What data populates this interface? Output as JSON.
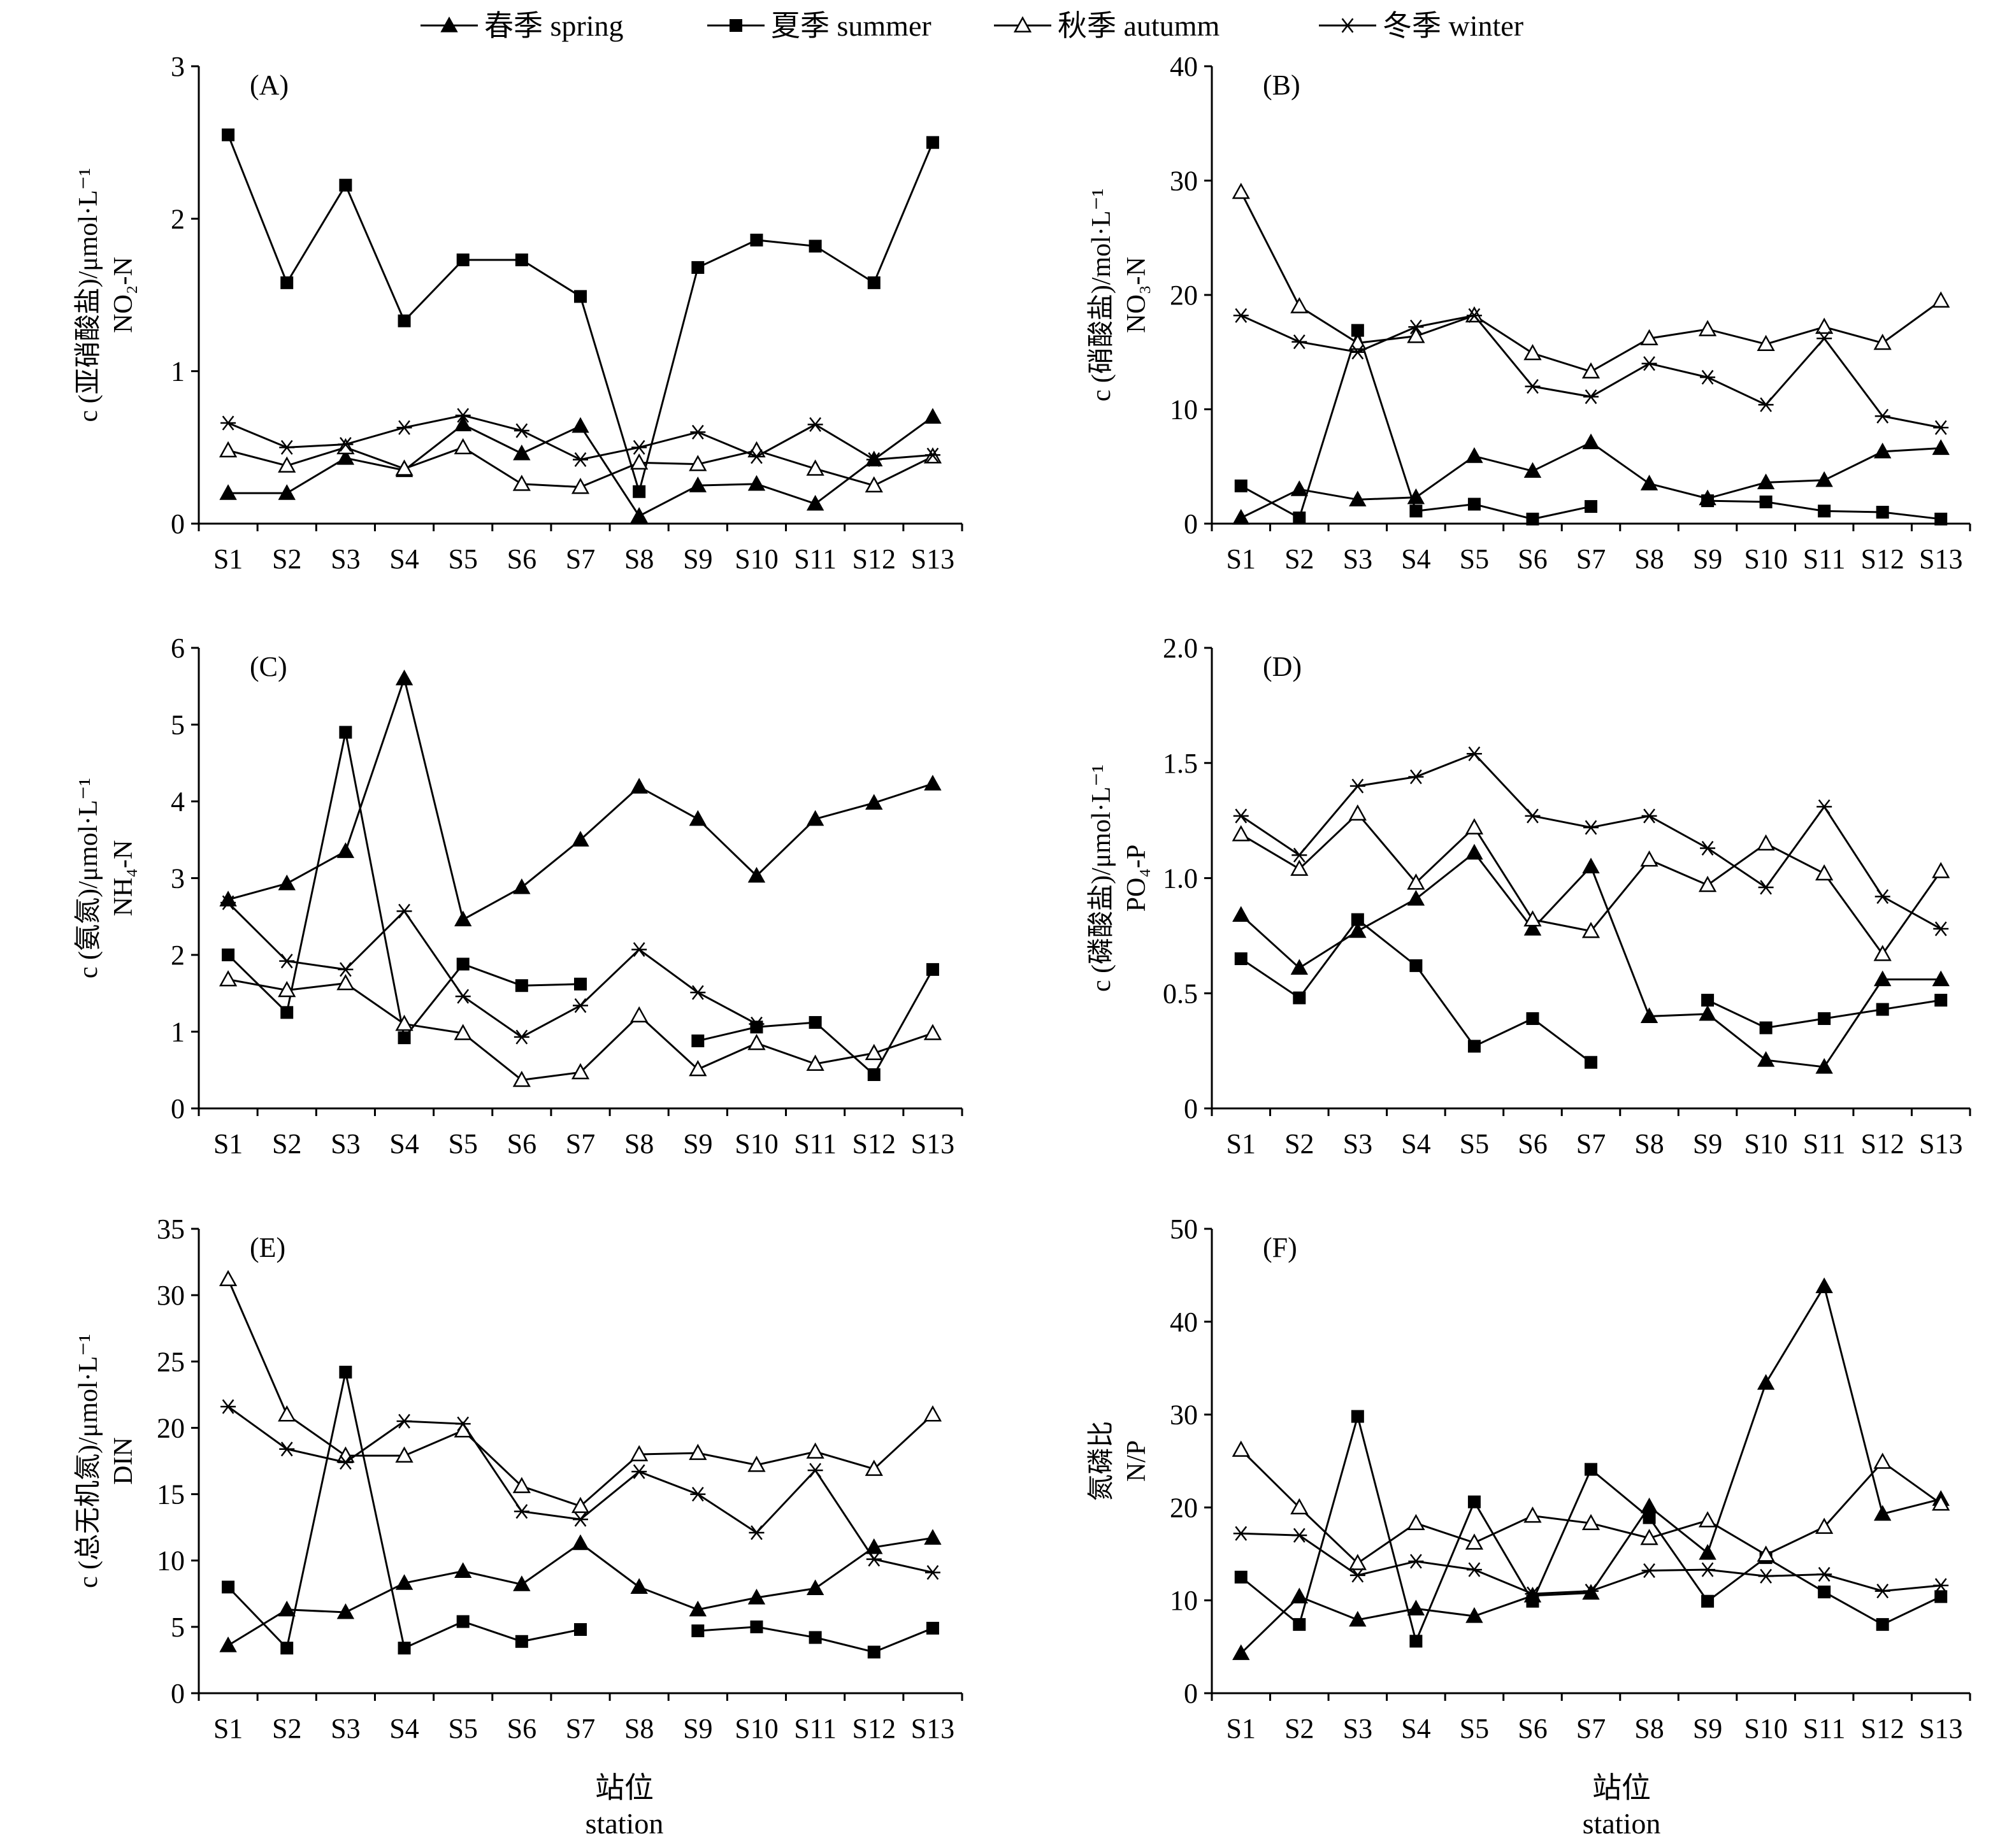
{
  "legend": [
    {
      "label": "春季 spring",
      "marker": "triangle-filled"
    },
    {
      "label": "夏季 summer",
      "marker": "square-filled"
    },
    {
      "label": "秋季 autumm",
      "marker": "triangle-open"
    },
    {
      "label": "冬季 winter",
      "marker": "asterisk"
    }
  ],
  "x_title_cn": "站位",
  "x_title_en": "station",
  "chart_data": [
    {
      "type": "line",
      "panel": "(A)",
      "ylabel_cn": "c (亚硝酸盐)/μmol·L⁻¹",
      "ylabel_en": "NO₂-N",
      "categories": [
        "S1",
        "S2",
        "S3",
        "S4",
        "S5",
        "S6",
        "S7",
        "S8",
        "S9",
        "S10",
        "S11",
        "S12",
        "S13"
      ],
      "ylim": [
        0,
        3
      ],
      "yticks": [
        "0",
        "1",
        "2",
        "3"
      ],
      "series": [
        {
          "name": "春季 spring",
          "values": [
            0.2,
            0.2,
            0.43,
            0.35,
            0.65,
            0.46,
            0.64,
            0.05,
            0.25,
            0.26,
            0.13,
            0.42,
            0.7
          ]
        },
        {
          "name": "夏季 summer",
          "values": [
            2.55,
            1.58,
            2.22,
            1.33,
            1.73,
            1.73,
            1.49,
            0.21,
            1.68,
            1.86,
            1.82,
            1.58,
            2.5
          ]
        },
        {
          "name": "秋季 autumm",
          "values": [
            0.48,
            0.38,
            0.5,
            0.36,
            0.5,
            0.26,
            0.24,
            0.4,
            0.39,
            0.48,
            0.36,
            0.25,
            0.44
          ]
        },
        {
          "name": "冬季 winter",
          "values": [
            0.66,
            0.5,
            0.52,
            0.63,
            0.71,
            0.61,
            0.42,
            0.5,
            0.6,
            0.44,
            0.65,
            0.42,
            0.45
          ]
        }
      ]
    },
    {
      "type": "line",
      "panel": "(B)",
      "ylabel_cn": "c (硝酸盐)/mol·L⁻¹",
      "ylabel_en": "NO₃-N",
      "categories": [
        "S1",
        "S2",
        "S3",
        "S4",
        "S5",
        "S6",
        "S7",
        "S8",
        "S9",
        "S10",
        "S11",
        "S12",
        "S13"
      ],
      "ylim": [
        0,
        40
      ],
      "yticks": [
        "0",
        "10",
        "20",
        "30",
        "40"
      ],
      "series": [
        {
          "name": "春季 spring",
          "values": [
            0.5,
            3.0,
            2.1,
            2.3,
            5.9,
            4.6,
            7.1,
            3.5,
            2.2,
            3.6,
            3.8,
            6.3,
            6.6
          ]
        },
        {
          "name": "夏季 summer",
          "values": [
            3.3,
            0.5,
            16.9,
            1.1,
            1.7,
            0.4,
            1.5,
            null,
            2.0,
            1.9,
            1.1,
            1.0,
            0.4
          ]
        },
        {
          "name": "秋季 autumm",
          "values": [
            29.0,
            19.0,
            15.8,
            16.4,
            18.2,
            14.9,
            13.3,
            16.2,
            17.0,
            15.7,
            17.2,
            15.8,
            19.5
          ]
        },
        {
          "name": "冬季 winter",
          "values": [
            18.2,
            15.9,
            15.0,
            17.2,
            18.2,
            12.0,
            11.1,
            14.0,
            12.8,
            10.4,
            16.2,
            9.4,
            8.4
          ]
        }
      ]
    },
    {
      "type": "line",
      "panel": "(C)",
      "ylabel_cn": "c (氨氮)/μmol·L⁻¹",
      "ylabel_en": "NH₄-N",
      "categories": [
        "S1",
        "S2",
        "S3",
        "S4",
        "S5",
        "S6",
        "S7",
        "S8",
        "S9",
        "S10",
        "S11",
        "S12",
        "S13"
      ],
      "ylim": [
        0,
        6
      ],
      "yticks": [
        "0",
        "1",
        "2",
        "3",
        "4",
        "5",
        "6"
      ],
      "series": [
        {
          "name": "春季 spring",
          "values": [
            2.72,
            2.93,
            3.35,
            5.6,
            2.46,
            2.88,
            3.5,
            4.19,
            3.77,
            3.03,
            3.77,
            3.98,
            4.23
          ]
        },
        {
          "name": "夏季 summer",
          "values": [
            2.0,
            1.25,
            4.9,
            0.92,
            1.88,
            1.6,
            1.62,
            null,
            0.88,
            1.06,
            1.12,
            0.44,
            1.81
          ]
        },
        {
          "name": "秋季 autumm",
          "values": [
            1.68,
            1.54,
            1.63,
            1.1,
            0.98,
            0.37,
            0.47,
            1.21,
            0.51,
            0.85,
            0.58,
            0.72,
            0.98
          ]
        },
        {
          "name": "冬季 winter",
          "values": [
            2.68,
            1.92,
            1.81,
            2.57,
            1.46,
            0.93,
            1.34,
            2.07,
            1.51,
            1.1,
            null,
            null,
            null
          ]
        }
      ]
    },
    {
      "type": "line",
      "panel": "(D)",
      "ylabel_cn": "c (磷酸盐)/μmol·L⁻¹",
      "ylabel_en": "PO₄-P",
      "categories": [
        "S1",
        "S2",
        "S3",
        "S4",
        "S5",
        "S6",
        "S7",
        "S8",
        "S9",
        "S10",
        "S11",
        "S12",
        "S13"
      ],
      "ylim": [
        0,
        2.0
      ],
      "yticks": [
        "0",
        "0.5",
        "1.0",
        "1.5",
        "2.0"
      ],
      "series": [
        {
          "name": "春季 spring",
          "values": [
            0.84,
            0.61,
            0.77,
            0.91,
            1.11,
            0.78,
            1.05,
            0.4,
            0.41,
            0.21,
            0.18,
            0.56,
            0.56
          ]
        },
        {
          "name": "夏季 summer",
          "values": [
            0.65,
            0.48,
            0.82,
            0.62,
            0.27,
            0.39,
            0.2,
            null,
            0.47,
            0.35,
            0.39,
            0.43,
            0.47
          ]
        },
        {
          "name": "秋季 autumm",
          "values": [
            1.19,
            1.04,
            1.28,
            0.98,
            1.22,
            0.82,
            0.77,
            1.08,
            0.97,
            1.15,
            1.02,
            0.67,
            1.03
          ]
        },
        {
          "name": "冬季 winter",
          "values": [
            1.27,
            1.1,
            1.4,
            1.44,
            1.54,
            1.27,
            1.22,
            1.27,
            1.13,
            0.96,
            1.31,
            0.92,
            0.78
          ]
        }
      ]
    },
    {
      "type": "line",
      "panel": "(E)",
      "ylabel_cn": "c (总无机氮)/μmol·L⁻¹",
      "ylabel_en": "DIN",
      "categories": [
        "S1",
        "S2",
        "S3",
        "S4",
        "S5",
        "S6",
        "S7",
        "S8",
        "S9",
        "S10",
        "S11",
        "S12",
        "S13"
      ],
      "ylim": [
        0,
        35
      ],
      "yticks": [
        "0",
        "5",
        "10",
        "15",
        "20",
        "25",
        "30",
        "35"
      ],
      "series": [
        {
          "name": "春季 spring",
          "values": [
            3.6,
            6.3,
            6.1,
            8.3,
            9.2,
            8.2,
            11.3,
            8.0,
            6.3,
            7.2,
            7.9,
            11.0,
            11.7
          ]
        },
        {
          "name": "夏季 summer",
          "values": [
            8.0,
            3.4,
            24.2,
            3.4,
            5.4,
            3.9,
            4.8,
            null,
            4.7,
            5.0,
            4.2,
            3.1,
            4.9
          ]
        },
        {
          "name": "秋季 autumm",
          "values": [
            31.2,
            21.0,
            17.9,
            17.9,
            19.8,
            15.6,
            14.1,
            18.0,
            18.1,
            17.2,
            18.2,
            16.9,
            21.0
          ]
        },
        {
          "name": "冬季 winter",
          "values": [
            21.6,
            18.4,
            17.4,
            20.5,
            20.3,
            13.7,
            13.1,
            16.7,
            15.0,
            12.1,
            16.8,
            10.1,
            9.1
          ]
        }
      ]
    },
    {
      "type": "line",
      "panel": "(F)",
      "ylabel_cn": "氮磷比",
      "ylabel_en": "N/P",
      "categories": [
        "S1",
        "S2",
        "S3",
        "S4",
        "S5",
        "S6",
        "S7",
        "S8",
        "S9",
        "S10",
        "S11",
        "S12",
        "S13"
      ],
      "ylim": [
        0,
        50
      ],
      "yticks": [
        "0",
        "10",
        "20",
        "30",
        "40",
        "50"
      ],
      "series": [
        {
          "name": "春季 spring",
          "values": [
            4.3,
            10.4,
            7.9,
            9.1,
            8.3,
            10.5,
            10.8,
            20.1,
            15.1,
            33.4,
            43.8,
            19.3,
            20.9
          ]
        },
        {
          "name": "夏季 summer",
          "values": [
            12.5,
            7.4,
            29.8,
            5.6,
            20.6,
            9.9,
            24.1,
            18.9,
            9.9,
            14.6,
            10.9,
            7.4,
            10.4
          ]
        },
        {
          "name": "秋季 autumm",
          "values": [
            26.2,
            20.0,
            14.0,
            18.3,
            16.2,
            19.1,
            18.3,
            16.7,
            18.6,
            14.9,
            17.9,
            24.9,
            20.4
          ]
        },
        {
          "name": "冬季 winter",
          "values": [
            17.2,
            17.0,
            12.7,
            14.2,
            13.3,
            10.7,
            11.0,
            13.2,
            13.3,
            12.6,
            12.8,
            11.0,
            11.6
          ]
        }
      ]
    }
  ]
}
